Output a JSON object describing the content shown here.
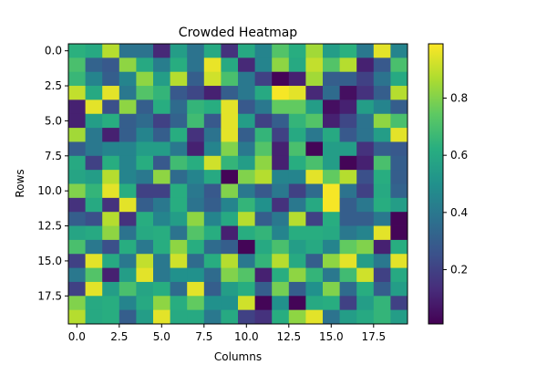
{
  "chart_data": {
    "type": "heatmap",
    "title": "Crowded Heatmap",
    "xlabel": "Columns",
    "ylabel": "Rows",
    "colormap": "viridis",
    "rows": 20,
    "cols": 20,
    "xlim": [
      -0.5,
      19.5
    ],
    "ylim": [
      19.5,
      -0.5
    ],
    "x_ticks": [
      0,
      2.5,
      5,
      7.5,
      10,
      12.5,
      15,
      17.5
    ],
    "x_tick_labels": [
      "0.0",
      "2.5",
      "5.0",
      "7.5",
      "10.0",
      "12.5",
      "15.0",
      "17.5"
    ],
    "y_ticks": [
      0,
      2.5,
      5,
      7.5,
      10,
      12.5,
      15,
      17.5
    ],
    "y_tick_labels": [
      "0.0",
      "2.5",
      "5.0",
      "7.5",
      "10.0",
      "12.5",
      "15.0",
      "17.5"
    ],
    "colorbar": {
      "range": [
        0.01,
        0.99
      ],
      "ticks": [
        0.2,
        0.4,
        0.6,
        0.8
      ],
      "tick_labels": [
        "0.2",
        "0.4",
        "0.6",
        "0.8"
      ]
    },
    "values": [
      [
        0.63,
        0.6,
        0.88,
        0.38,
        0.38,
        0.12,
        0.55,
        0.38,
        0.6,
        0.15,
        0.6,
        0.45,
        0.72,
        0.62,
        0.85,
        0.55,
        0.63,
        0.4,
        0.95,
        0.45
      ],
      [
        0.7,
        0.32,
        0.28,
        0.82,
        0.6,
        0.42,
        0.62,
        0.38,
        0.96,
        0.6,
        0.12,
        0.45,
        0.82,
        0.6,
        0.9,
        0.72,
        0.88,
        0.1,
        0.28,
        0.7
      ],
      [
        0.66,
        0.45,
        0.3,
        0.45,
        0.82,
        0.55,
        0.88,
        0.3,
        0.92,
        0.7,
        0.4,
        0.2,
        0.02,
        0.1,
        0.85,
        0.3,
        0.3,
        0.2,
        0.38,
        0.6
      ],
      [
        0.9,
        0.6,
        0.95,
        0.4,
        0.72,
        0.65,
        0.28,
        0.22,
        0.1,
        0.3,
        0.4,
        0.6,
        0.98,
        0.95,
        0.12,
        0.35,
        0.05,
        0.15,
        0.3,
        0.88
      ],
      [
        0.1,
        0.95,
        0.25,
        0.82,
        0.3,
        0.62,
        0.35,
        0.65,
        0.62,
        0.95,
        0.28,
        0.4,
        0.75,
        0.75,
        0.55,
        0.05,
        0.1,
        0.55,
        0.45,
        0.3
      ],
      [
        0.1,
        0.55,
        0.62,
        0.3,
        0.35,
        0.2,
        0.32,
        0.68,
        0.28,
        0.95,
        0.55,
        0.2,
        0.3,
        0.65,
        0.72,
        0.1,
        0.22,
        0.38,
        0.82,
        0.7
      ],
      [
        0.85,
        0.4,
        0.1,
        0.3,
        0.45,
        0.3,
        0.62,
        0.15,
        0.38,
        0.95,
        0.3,
        0.65,
        0.2,
        0.6,
        0.4,
        0.6,
        0.28,
        0.38,
        0.55,
        0.95
      ],
      [
        0.3,
        0.4,
        0.45,
        0.45,
        0.55,
        0.55,
        0.4,
        0.1,
        0.45,
        0.8,
        0.4,
        0.72,
        0.1,
        0.7,
        0.02,
        0.55,
        0.55,
        0.15,
        0.3,
        0.28
      ],
      [
        0.6,
        0.2,
        0.62,
        0.45,
        0.62,
        0.28,
        0.68,
        0.62,
        0.92,
        0.65,
        0.55,
        0.82,
        0.1,
        0.62,
        0.7,
        0.55,
        0.02,
        0.1,
        0.7,
        0.3
      ],
      [
        0.58,
        0.55,
        0.88,
        0.45,
        0.4,
        0.82,
        0.35,
        0.45,
        0.6,
        0.02,
        0.8,
        0.88,
        0.45,
        0.45,
        0.95,
        0.75,
        0.88,
        0.25,
        0.62,
        0.3
      ],
      [
        0.8,
        0.65,
        0.95,
        0.62,
        0.2,
        0.2,
        0.62,
        0.4,
        0.28,
        0.8,
        0.4,
        0.28,
        0.4,
        0.2,
        0.35,
        0.98,
        0.38,
        0.2,
        0.6,
        0.32
      ],
      [
        0.15,
        0.6,
        0.15,
        0.95,
        0.3,
        0.4,
        0.62,
        0.38,
        0.3,
        0.45,
        0.65,
        0.5,
        0.15,
        0.4,
        0.6,
        0.98,
        0.3,
        0.4,
        0.62,
        0.55
      ],
      [
        0.3,
        0.25,
        0.88,
        0.15,
        0.62,
        0.45,
        0.55,
        0.82,
        0.45,
        0.6,
        0.88,
        0.3,
        0.4,
        0.88,
        0.2,
        0.62,
        0.3,
        0.3,
        0.4,
        0.02
      ],
      [
        0.58,
        0.6,
        0.82,
        0.38,
        0.6,
        0.62,
        0.38,
        0.72,
        0.62,
        0.1,
        0.62,
        0.65,
        0.45,
        0.62,
        0.62,
        0.6,
        0.4,
        0.45,
        0.95,
        0.02
      ],
      [
        0.7,
        0.4,
        0.25,
        0.62,
        0.4,
        0.62,
        0.82,
        0.62,
        0.35,
        0.3,
        0.02,
        0.6,
        0.7,
        0.55,
        0.6,
        0.45,
        0.75,
        0.8,
        0.1,
        0.62
      ],
      [
        0.2,
        0.95,
        0.6,
        0.4,
        0.9,
        0.4,
        0.92,
        0.35,
        0.62,
        0.88,
        0.4,
        0.65,
        0.88,
        0.6,
        0.3,
        0.82,
        0.95,
        0.55,
        0.4,
        0.95
      ],
      [
        0.4,
        0.72,
        0.1,
        0.55,
        0.95,
        0.4,
        0.5,
        0.5,
        0.35,
        0.8,
        0.72,
        0.1,
        0.62,
        0.82,
        0.65,
        0.4,
        0.68,
        0.92,
        0.2,
        0.6
      ],
      [
        0.2,
        0.95,
        0.55,
        0.7,
        0.58,
        0.62,
        0.35,
        0.95,
        0.3,
        0.55,
        0.62,
        0.3,
        0.78,
        0.3,
        0.5,
        0.8,
        0.35,
        0.62,
        0.3,
        0.55
      ],
      [
        0.8,
        0.6,
        0.62,
        0.45,
        0.6,
        0.82,
        0.62,
        0.75,
        0.5,
        0.5,
        0.92,
        0.02,
        0.5,
        0.02,
        0.6,
        0.62,
        0.2,
        0.55,
        0.65,
        0.2
      ],
      [
        0.88,
        0.6,
        0.62,
        0.3,
        0.55,
        0.95,
        0.6,
        0.6,
        0.4,
        0.6,
        0.2,
        0.15,
        0.62,
        0.82,
        0.95,
        0.38,
        0.55,
        0.6,
        0.65,
        0.55
      ]
    ]
  }
}
